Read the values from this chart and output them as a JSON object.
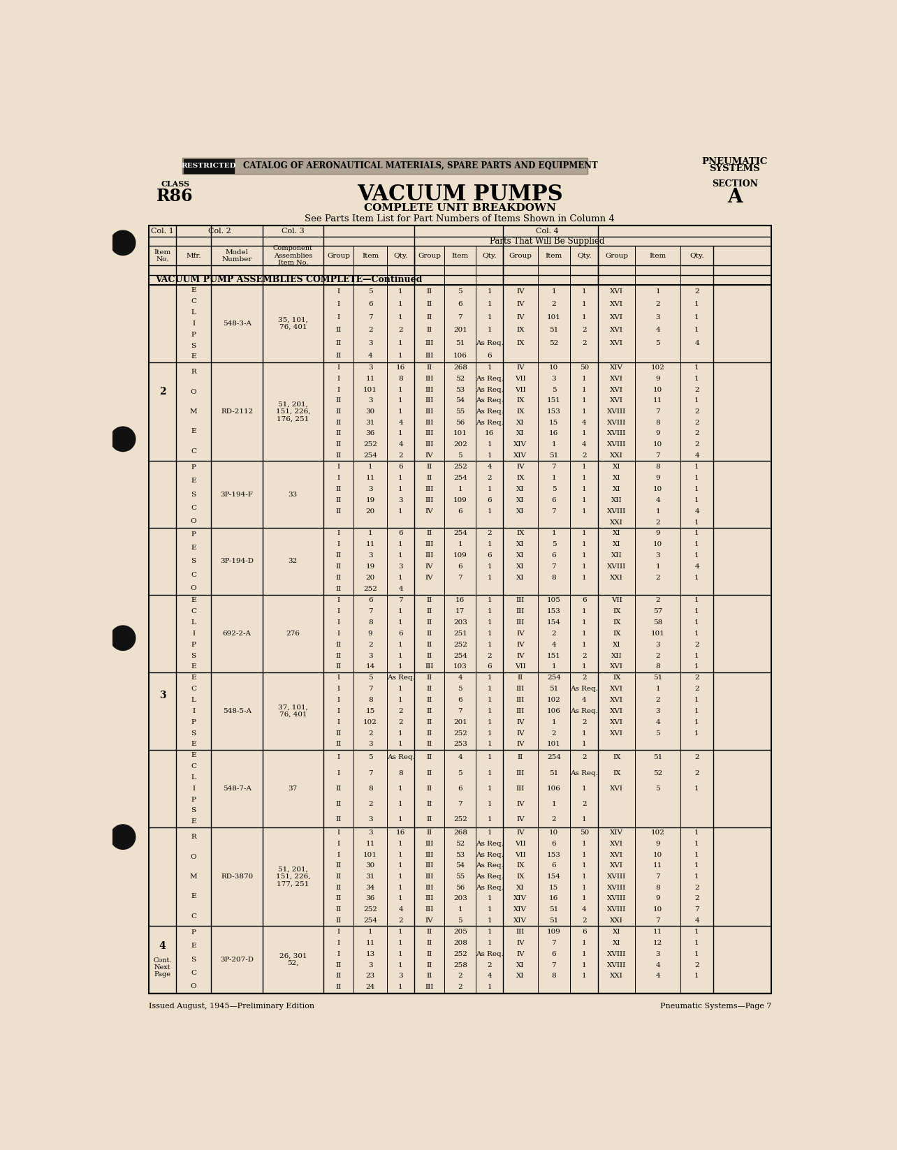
{
  "bg_color": "#ede0cc",
  "title_main": "VACUUM PUMPS",
  "title_sub": "COMPLETE UNIT BREAKDOWN",
  "title_sub2": "See Parts Item List for Part Numbers of Items Shown in Column 4",
  "class_label": "CLASS",
  "class_value": "R86",
  "section_label": "SECTION",
  "section_value": "A",
  "pneumatic_line1": "PNEUMATIC",
  "pneumatic_line2": "SYSTEMS",
  "restricted_text": "RESTRICTED",
  "catalog_text": "CATALOG OF AERONAUTICAL MATERIALS, SPARE PARTS AND EQUIPMENT",
  "footer_left": "Issued August, 1945—Preliminary Edition",
  "footer_right": "Pneumatic Systems—Page 7",
  "section_header": "VACUUM PUMP ASSEMBLIES COMPLETE—Continued",
  "parts_header": "Parts That Will Be Supplied",
  "table_data": [
    [
      "",
      "E\nC\nL\nI\nP\nS\nE",
      "548-3-A",
      "35, 101,\n76, 401",
      [
        [
          "I",
          "5",
          "1",
          "II",
          "5",
          "1",
          "IV",
          "1",
          "1",
          "XVI",
          "1",
          "2"
        ],
        [
          "I",
          "6",
          "1",
          "II",
          "6",
          "1",
          "IV",
          "2",
          "1",
          "XVI",
          "2",
          "1"
        ],
        [
          "I",
          "7",
          "1",
          "II",
          "7",
          "1",
          "IV",
          "101",
          "1",
          "XVI",
          "3",
          "1"
        ],
        [
          "II",
          "2",
          "2",
          "II",
          "201",
          "1",
          "IX",
          "51",
          "2",
          "XVI",
          "4",
          "1"
        ],
        [
          "II",
          "3",
          "1",
          "III",
          "51",
          "As Req.",
          "IX",
          "52",
          "2",
          "XVI",
          "5",
          "4"
        ],
        [
          "II",
          "4",
          "1",
          "III",
          "106",
          "6",
          "",
          "",
          "",
          "",
          "",
          ""
        ]
      ]
    ],
    [
      "2",
      "R\nO\nM\nE\nC",
      "RD-2112",
      "51, 201,\n151, 226,\n176, 251",
      [
        [
          "I",
          "3",
          "16",
          "II",
          "268",
          "1",
          "IV",
          "10",
          "50",
          "XIV",
          "102",
          "1"
        ],
        [
          "I",
          "11",
          "8",
          "III",
          "52",
          "As Req.",
          "VII",
          "3",
          "1",
          "XVI",
          "9",
          "1"
        ],
        [
          "I",
          "101",
          "1",
          "III",
          "53",
          "As Req.",
          "VII",
          "5",
          "1",
          "XVI",
          "10",
          "2"
        ],
        [
          "II",
          "3",
          "1",
          "III",
          "54",
          "As Req.",
          "IX",
          "151",
          "1",
          "XVI",
          "11",
          "1"
        ],
        [
          "II",
          "30",
          "1",
          "III",
          "55",
          "As Req.",
          "IX",
          "153",
          "1",
          "XVIII",
          "7",
          "2"
        ],
        [
          "II",
          "31",
          "4",
          "III",
          "56",
          "As Req.",
          "XI",
          "15",
          "4",
          "XVIII",
          "8",
          "2"
        ],
        [
          "II",
          "36",
          "1",
          "III",
          "101",
          "16",
          "XI",
          "16",
          "1",
          "XVIII",
          "9",
          "2"
        ],
        [
          "II",
          "252",
          "4",
          "III",
          "202",
          "1",
          "XIV",
          "1",
          "4",
          "XVIII",
          "10",
          "2"
        ],
        [
          "II",
          "254",
          "2",
          "IV",
          "5",
          "1",
          "XIV",
          "51",
          "2",
          "XXI",
          "7",
          "4"
        ]
      ]
    ],
    [
      "",
      "P\nE\nS\nC\nO",
      "3P-194-F",
      "33",
      [
        [
          "I",
          "1",
          "6",
          "II",
          "252",
          "4",
          "IV",
          "7",
          "1",
          "XI",
          "8",
          "1"
        ],
        [
          "I",
          "11",
          "1",
          "II",
          "254",
          "2",
          "IX",
          "1",
          "1",
          "XI",
          "9",
          "1"
        ],
        [
          "II",
          "3",
          "1",
          "III",
          "1",
          "1",
          "XI",
          "5",
          "1",
          "XI",
          "10",
          "1"
        ],
        [
          "II",
          "19",
          "3",
          "III",
          "109",
          "6",
          "XI",
          "6",
          "1",
          "XII",
          "4",
          "1"
        ],
        [
          "II",
          "20",
          "1",
          "IV",
          "6",
          "1",
          "XI",
          "7",
          "1",
          "XVIII",
          "1",
          "4"
        ],
        [
          "",
          "",
          "",
          "",
          "",
          "",
          "",
          "",
          "",
          "XXI",
          "2",
          "1"
        ]
      ]
    ],
    [
      "",
      "P\nE\nS\nC\nO",
      "3P-194-D",
      "32",
      [
        [
          "I",
          "1",
          "6",
          "II",
          "254",
          "2",
          "IX",
          "1",
          "1",
          "XI",
          "9",
          "1"
        ],
        [
          "I",
          "11",
          "1",
          "III",
          "1",
          "1",
          "XI",
          "5",
          "1",
          "XI",
          "10",
          "1"
        ],
        [
          "II",
          "3",
          "1",
          "III",
          "109",
          "6",
          "XI",
          "6",
          "1",
          "XII",
          "3",
          "1"
        ],
        [
          "II",
          "19",
          "3",
          "IV",
          "6",
          "1",
          "XI",
          "7",
          "1",
          "XVIII",
          "1",
          "4"
        ],
        [
          "II",
          "20",
          "1",
          "IV",
          "7",
          "1",
          "XI",
          "8",
          "1",
          "XXI",
          "2",
          "1"
        ],
        [
          "II",
          "252",
          "4",
          "",
          "",
          "",
          "",
          "",
          "",
          "",
          "",
          ""
        ]
      ]
    ],
    [
      "",
      "E\nC\nL\nI\nP\nS\nE",
      "692-2-A",
      "276",
      [
        [
          "I",
          "6",
          "7",
          "II",
          "16",
          "1",
          "III",
          "105",
          "6",
          "VII",
          "2",
          "1"
        ],
        [
          "I",
          "7",
          "1",
          "II",
          "17",
          "1",
          "III",
          "153",
          "1",
          "IX",
          "57",
          "1"
        ],
        [
          "I",
          "8",
          "1",
          "II",
          "203",
          "1",
          "III",
          "154",
          "1",
          "IX",
          "58",
          "1"
        ],
        [
          "I",
          "9",
          "6",
          "II",
          "251",
          "1",
          "IV",
          "2",
          "1",
          "IX",
          "101",
          "1"
        ],
        [
          "II",
          "2",
          "1",
          "II",
          "252",
          "1",
          "IV",
          "4",
          "1",
          "XI",
          "3",
          "2"
        ],
        [
          "II",
          "3",
          "1",
          "II",
          "254",
          "2",
          "IV",
          "151",
          "2",
          "XII",
          "2",
          "1"
        ],
        [
          "II",
          "14",
          "1",
          "III",
          "103",
          "6",
          "VII",
          "1",
          "1",
          "XVI",
          "8",
          "1"
        ]
      ]
    ],
    [
      "3",
      "E\nC\nL\nI\nP\nS\nE",
      "548-5-A",
      "37, 101,\n76, 401",
      [
        [
          "I",
          "5",
          "As Req.",
          "II",
          "4",
          "1",
          "II",
          "254",
          "2",
          "IX",
          "51",
          "2"
        ],
        [
          "I",
          "7",
          "1",
          "II",
          "5",
          "1",
          "III",
          "51",
          "As Req.",
          "XVI",
          "1",
          "2"
        ],
        [
          "I",
          "8",
          "1",
          "II",
          "6",
          "1",
          "III",
          "102",
          "4",
          "XVI",
          "2",
          "1"
        ],
        [
          "I",
          "15",
          "2",
          "II",
          "7",
          "1",
          "III",
          "106",
          "As Req.",
          "XVI",
          "3",
          "1"
        ],
        [
          "I",
          "102",
          "2",
          "II",
          "201",
          "1",
          "IV",
          "1",
          "2",
          "XVI",
          "4",
          "1"
        ],
        [
          "II",
          "2",
          "1",
          "II",
          "252",
          "1",
          "IV",
          "2",
          "1",
          "XVI",
          "5",
          "1"
        ],
        [
          "II",
          "3",
          "1",
          "II",
          "253",
          "1",
          "IV",
          "101",
          "1",
          "",
          "",
          ""
        ]
      ]
    ],
    [
      "",
      "E\nC\nL\nI\nP\nS\nE",
      "548-7-A",
      "37",
      [
        [
          "I",
          "5",
          "As Req.",
          "II",
          "4",
          "1",
          "II",
          "254",
          "2",
          "IX",
          "51",
          "2"
        ],
        [
          "I",
          "7",
          "8",
          "II",
          "5",
          "1",
          "III",
          "51",
          "As Req.",
          "IX",
          "52",
          "2"
        ],
        [
          "II",
          "8",
          "1",
          "II",
          "6",
          "1",
          "III",
          "106",
          "1",
          "XVI",
          "5",
          "1"
        ],
        [
          "II",
          "2",
          "1",
          "II",
          "7",
          "1",
          "IV",
          "1",
          "2",
          "",
          "",
          ""
        ],
        [
          "II",
          "3",
          "1",
          "II",
          "252",
          "1",
          "IV",
          "2",
          "1",
          "",
          "",
          ""
        ]
      ]
    ],
    [
      "",
      "R\nO\nM\nE\nC",
      "RD-3870",
      "51, 201,\n151, 226,\n177, 251",
      [
        [
          "I",
          "3",
          "16",
          "II",
          "268",
          "1",
          "IV",
          "10",
          "50",
          "XIV",
          "102",
          "1"
        ],
        [
          "I",
          "11",
          "1",
          "III",
          "52",
          "As Req.",
          "VII",
          "6",
          "1",
          "XVI",
          "9",
          "1"
        ],
        [
          "I",
          "101",
          "1",
          "III",
          "53",
          "As Req.",
          "VII",
          "153",
          "1",
          "XVI",
          "10",
          "1"
        ],
        [
          "II",
          "30",
          "1",
          "III",
          "54",
          "As Req.",
          "IX",
          "6",
          "1",
          "XVI",
          "11",
          "1"
        ],
        [
          "II",
          "31",
          "1",
          "III",
          "55",
          "As Req.",
          "IX",
          "154",
          "1",
          "XVIII",
          "7",
          "1"
        ],
        [
          "II",
          "34",
          "1",
          "III",
          "56",
          "As Req.",
          "XI",
          "15",
          "1",
          "XVIII",
          "8",
          "2"
        ],
        [
          "II",
          "36",
          "1",
          "III",
          "203",
          "1",
          "XIV",
          "16",
          "1",
          "XVIII",
          "9",
          "2"
        ],
        [
          "II",
          "252",
          "4",
          "III",
          "1",
          "1",
          "XIV",
          "51",
          "4",
          "XVIII",
          "10",
          "7"
        ],
        [
          "II",
          "254",
          "2",
          "IV",
          "5",
          "1",
          "XIV",
          "51",
          "2",
          "XXI",
          "7",
          "4"
        ]
      ]
    ],
    [
      "4\nCont.\nNext\nPage",
      "P\nE\nS\nC\nO",
      "3P-207-D",
      "26, 301\n52,",
      [
        [
          "I",
          "1",
          "1",
          "II",
          "205",
          "1",
          "III",
          "109",
          "6",
          "XI",
          "11",
          "1"
        ],
        [
          "I",
          "11",
          "1",
          "II",
          "208",
          "1",
          "IV",
          "7",
          "1",
          "XI",
          "12",
          "1"
        ],
        [
          "I",
          "13",
          "1",
          "II",
          "252",
          "As Req.",
          "IV",
          "6",
          "1",
          "XVIII",
          "3",
          "1"
        ],
        [
          "II",
          "3",
          "1",
          "II",
          "258",
          "2",
          "XI",
          "7",
          "1",
          "XVIII",
          "4",
          "2"
        ],
        [
          "II",
          "23",
          "3",
          "II",
          "2",
          "4",
          "XI",
          "8",
          "1",
          "XXI",
          "4",
          "1"
        ],
        [
          "II",
          "24",
          "1",
          "III",
          "2",
          "1",
          "",
          "",
          "",
          "",
          "",
          ""
        ]
      ]
    ]
  ]
}
